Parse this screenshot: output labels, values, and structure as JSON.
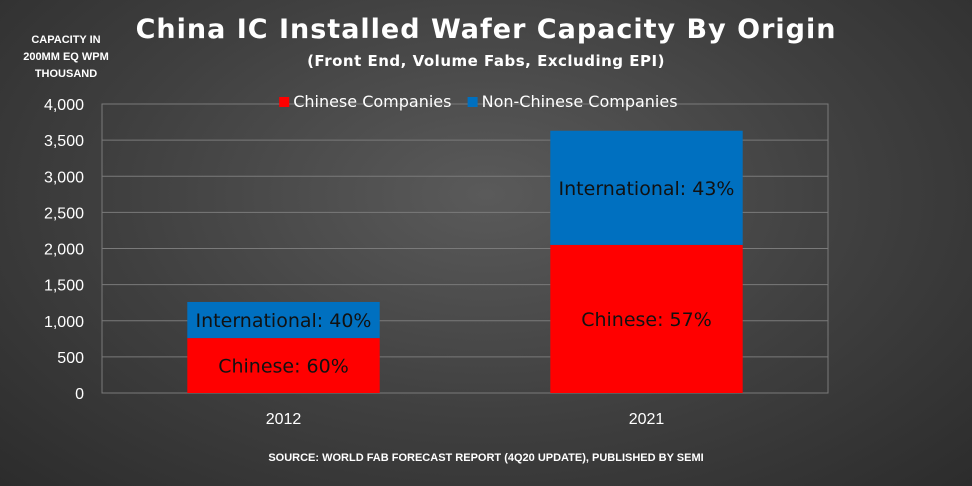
{
  "chart_data": {
    "type": "bar",
    "stacked": true,
    "title": "China IC Installed Wafer Capacity By Origin",
    "subtitle": "(Front End, Volume Fabs, Excluding EPI)",
    "ylabel_lines": [
      "CAPACITY IN",
      "200MM EQ WPM",
      "THOUSAND"
    ],
    "source": "SOURCE: WORLD FAB FORECAST REPORT (4Q20 UPDATE), PUBLISHED BY SEMI",
    "categories": [
      "2012",
      "2021"
    ],
    "series": [
      {
        "name": "Chinese Companies",
        "color": "#ff0000",
        "values": [
          760,
          2050
        ],
        "labels": [
          "Chinese: 60%",
          "Chinese: 57%"
        ]
      },
      {
        "name": "Non-Chinese Companies",
        "color": "#0070c0",
        "values": [
          500,
          1580
        ],
        "labels": [
          "International: 40%",
          "International: 43%"
        ]
      }
    ],
    "ylim": [
      0,
      4000
    ],
    "yticks": [
      "0",
      "500",
      "1,000",
      "1,500",
      "2,000",
      "2,500",
      "3,000",
      "3,500",
      "4,000"
    ],
    "grid": true,
    "legend_position": "top"
  }
}
